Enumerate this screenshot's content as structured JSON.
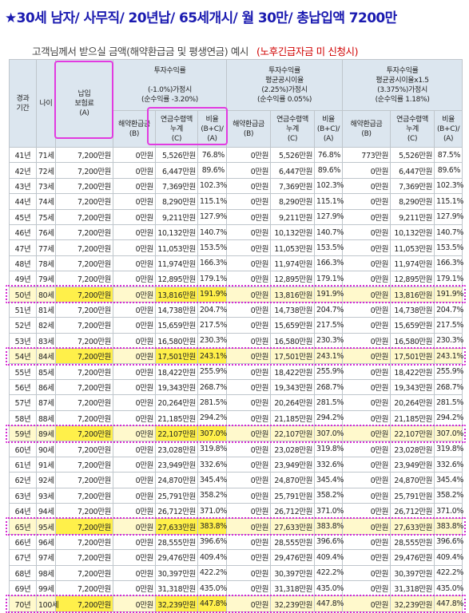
{
  "title": "★30세 남자/ 사무직/ 20년납/ 65세개시/ 월 30만/ 총납입액 7200만",
  "subtitle": "고객님께서 받으실 금액(해약환급금 및 평생연금) 예시",
  "subtitle_note": "(노후긴급자금 미 신청시)",
  "headers": {
    "period": "경과\n기간",
    "age": "나이",
    "premium": "납입\n보험료\n(A)",
    "group1": "투자수익률\n\n(-1.0%)가정시\n(순수익률 -3.20%)",
    "group2": "투자수익률\n평균공시이율\n(2.25%)가정시\n(순수익률 0.05%)",
    "group3": "투자수익률\n평균공시이율x1.5\n(3.375%)가정시\n(순수익률 1.18%)",
    "refund": "해약환급금\n(B)",
    "annuity": "연금수령액\n누계\n(C)",
    "ratio": "비율\n(B+C)/\n(A)"
  },
  "rows": [
    {
      "period": "41년",
      "age": "71세",
      "premium": "7,200만원",
      "g1": {
        "refund": "0만원",
        "annuity": "5,526만원",
        "ratio": "76.8%"
      },
      "g2": {
        "refund": "0만원",
        "annuity": "5,526만원",
        "ratio": "76.8%"
      },
      "g3": {
        "refund": "773만원",
        "annuity": "5,526만원",
        "ratio": "87.5%"
      },
      "hl": false
    },
    {
      "period": "42년",
      "age": "72세",
      "premium": "7,200만원",
      "g1": {
        "refund": "0만원",
        "annuity": "6,447만원",
        "ratio": "89.6%"
      },
      "g2": {
        "refund": "0만원",
        "annuity": "6,447만원",
        "ratio": "89.6%"
      },
      "g3": {
        "refund": "0만원",
        "annuity": "6,447만원",
        "ratio": "89.6%"
      },
      "hl": false
    },
    {
      "period": "43년",
      "age": "73세",
      "premium": "7,200만원",
      "g1": {
        "refund": "0만원",
        "annuity": "7,369만원",
        "ratio": "102.3%"
      },
      "g2": {
        "refund": "0만원",
        "annuity": "7,369만원",
        "ratio": "102.3%"
      },
      "g3": {
        "refund": "0만원",
        "annuity": "7,369만원",
        "ratio": "102.3%"
      },
      "hl": false
    },
    {
      "period": "44년",
      "age": "74세",
      "premium": "7,200만원",
      "g1": {
        "refund": "0만원",
        "annuity": "8,290만원",
        "ratio": "115.1%"
      },
      "g2": {
        "refund": "0만원",
        "annuity": "8,290만원",
        "ratio": "115.1%"
      },
      "g3": {
        "refund": "0만원",
        "annuity": "8,290만원",
        "ratio": "115.1%"
      },
      "hl": false
    },
    {
      "period": "45년",
      "age": "75세",
      "premium": "7,200만원",
      "g1": {
        "refund": "0만원",
        "annuity": "9,211만원",
        "ratio": "127.9%"
      },
      "g2": {
        "refund": "0만원",
        "annuity": "9,211만원",
        "ratio": "127.9%"
      },
      "g3": {
        "refund": "0만원",
        "annuity": "9,211만원",
        "ratio": "127.9%"
      },
      "hl": false
    },
    {
      "period": "46년",
      "age": "76세",
      "premium": "7,200만원",
      "g1": {
        "refund": "0만원",
        "annuity": "10,132만원",
        "ratio": "140.7%"
      },
      "g2": {
        "refund": "0만원",
        "annuity": "10,132만원",
        "ratio": "140.7%"
      },
      "g3": {
        "refund": "0만원",
        "annuity": "10,132만원",
        "ratio": "140.7%"
      },
      "hl": false
    },
    {
      "period": "47년",
      "age": "77세",
      "premium": "7,200만원",
      "g1": {
        "refund": "0만원",
        "annuity": "11,053만원",
        "ratio": "153.5%"
      },
      "g2": {
        "refund": "0만원",
        "annuity": "11,053만원",
        "ratio": "153.5%"
      },
      "g3": {
        "refund": "0만원",
        "annuity": "11,053만원",
        "ratio": "153.5%"
      },
      "hl": false
    },
    {
      "period": "48년",
      "age": "78세",
      "premium": "7,200만원",
      "g1": {
        "refund": "0만원",
        "annuity": "11,974만원",
        "ratio": "166.3%"
      },
      "g2": {
        "refund": "0만원",
        "annuity": "11,974만원",
        "ratio": "166.3%"
      },
      "g3": {
        "refund": "0만원",
        "annuity": "11,974만원",
        "ratio": "166.3%"
      },
      "hl": false
    },
    {
      "period": "49년",
      "age": "79세",
      "premium": "7,200만원",
      "g1": {
        "refund": "0만원",
        "annuity": "12,895만원",
        "ratio": "179.1%"
      },
      "g2": {
        "refund": "0만원",
        "annuity": "12,895만원",
        "ratio": "179.1%"
      },
      "g3": {
        "refund": "0만원",
        "annuity": "12,895만원",
        "ratio": "179.1%"
      },
      "hl": false
    },
    {
      "period": "50년",
      "age": "80세",
      "premium": "7,200만원",
      "g1": {
        "refund": "0만원",
        "annuity": "13,816만원",
        "ratio": "191.9%"
      },
      "g2": {
        "refund": "0만원",
        "annuity": "13,816만원",
        "ratio": "191.9%"
      },
      "g3": {
        "refund": "0만원",
        "annuity": "13,816만원",
        "ratio": "191.9%"
      },
      "hl": true
    },
    {
      "period": "51년",
      "age": "81세",
      "premium": "7,200만원",
      "g1": {
        "refund": "0만원",
        "annuity": "14,738만원",
        "ratio": "204.7%"
      },
      "g2": {
        "refund": "0만원",
        "annuity": "14,738만원",
        "ratio": "204.7%"
      },
      "g3": {
        "refund": "0만원",
        "annuity": "14,738만원",
        "ratio": "204.7%"
      },
      "hl": false
    },
    {
      "period": "52년",
      "age": "82세",
      "premium": "7,200만원",
      "g1": {
        "refund": "0만원",
        "annuity": "15,659만원",
        "ratio": "217.5%"
      },
      "g2": {
        "refund": "0만원",
        "annuity": "15,659만원",
        "ratio": "217.5%"
      },
      "g3": {
        "refund": "0만원",
        "annuity": "15,659만원",
        "ratio": "217.5%"
      },
      "hl": false
    },
    {
      "period": "53년",
      "age": "83세",
      "premium": "7,200만원",
      "g1": {
        "refund": "0만원",
        "annuity": "16,580만원",
        "ratio": "230.3%"
      },
      "g2": {
        "refund": "0만원",
        "annuity": "16,580만원",
        "ratio": "230.3%"
      },
      "g3": {
        "refund": "0만원",
        "annuity": "16,580만원",
        "ratio": "230.3%"
      },
      "hl": false
    },
    {
      "period": "54년",
      "age": "84세",
      "premium": "7,200만원",
      "g1": {
        "refund": "0만원",
        "annuity": "17,501만원",
        "ratio": "243.1%"
      },
      "g2": {
        "refund": "0만원",
        "annuity": "17,501만원",
        "ratio": "243.1%"
      },
      "g3": {
        "refund": "0만원",
        "annuity": "17,501만원",
        "ratio": "243.1%"
      },
      "hl": true
    },
    {
      "period": "55년",
      "age": "85세",
      "premium": "7,200만원",
      "g1": {
        "refund": "0만원",
        "annuity": "18,422만원",
        "ratio": "255.9%"
      },
      "g2": {
        "refund": "0만원",
        "annuity": "18,422만원",
        "ratio": "255.9%"
      },
      "g3": {
        "refund": "0만원",
        "annuity": "18,422만원",
        "ratio": "255.9%"
      },
      "hl": false
    },
    {
      "period": "56년",
      "age": "86세",
      "premium": "7,200만원",
      "g1": {
        "refund": "0만원",
        "annuity": "19,343만원",
        "ratio": "268.7%"
      },
      "g2": {
        "refund": "0만원",
        "annuity": "19,343만원",
        "ratio": "268.7%"
      },
      "g3": {
        "refund": "0만원",
        "annuity": "19,343만원",
        "ratio": "268.7%"
      },
      "hl": false
    },
    {
      "period": "57년",
      "age": "87세",
      "premium": "7,200만원",
      "g1": {
        "refund": "0만원",
        "annuity": "20,264만원",
        "ratio": "281.5%"
      },
      "g2": {
        "refund": "0만원",
        "annuity": "20,264만원",
        "ratio": "281.5%"
      },
      "g3": {
        "refund": "0만원",
        "annuity": "20,264만원",
        "ratio": "281.5%"
      },
      "hl": false
    },
    {
      "period": "58년",
      "age": "88세",
      "premium": "7,200만원",
      "g1": {
        "refund": "0만원",
        "annuity": "21,185만원",
        "ratio": "294.2%"
      },
      "g2": {
        "refund": "0만원",
        "annuity": "21,185만원",
        "ratio": "294.2%"
      },
      "g3": {
        "refund": "0만원",
        "annuity": "21,185만원",
        "ratio": "294.2%"
      },
      "hl": false
    },
    {
      "period": "59년",
      "age": "89세",
      "premium": "7,200만원",
      "g1": {
        "refund": "0만원",
        "annuity": "22,107만원",
        "ratio": "307.0%"
      },
      "g2": {
        "refund": "0만원",
        "annuity": "22,107만원",
        "ratio": "307.0%"
      },
      "g3": {
        "refund": "0만원",
        "annuity": "22,107만원",
        "ratio": "307.0%"
      },
      "hl": true
    },
    {
      "period": "60년",
      "age": "90세",
      "premium": "7,200만원",
      "g1": {
        "refund": "0만원",
        "annuity": "23,028만원",
        "ratio": "319.8%"
      },
      "g2": {
        "refund": "0만원",
        "annuity": "23,028만원",
        "ratio": "319.8%"
      },
      "g3": {
        "refund": "0만원",
        "annuity": "23,028만원",
        "ratio": "319.8%"
      },
      "hl": false
    },
    {
      "period": "61년",
      "age": "91세",
      "premium": "7,200만원",
      "g1": {
        "refund": "0만원",
        "annuity": "23,949만원",
        "ratio": "332.6%"
      },
      "g2": {
        "refund": "0만원",
        "annuity": "23,949만원",
        "ratio": "332.6%"
      },
      "g3": {
        "refund": "0만원",
        "annuity": "23,949만원",
        "ratio": "332.6%"
      },
      "hl": false
    },
    {
      "period": "62년",
      "age": "92세",
      "premium": "7,200만원",
      "g1": {
        "refund": "0만원",
        "annuity": "24,870만원",
        "ratio": "345.4%"
      },
      "g2": {
        "refund": "0만원",
        "annuity": "24,870만원",
        "ratio": "345.4%"
      },
      "g3": {
        "refund": "0만원",
        "annuity": "24,870만원",
        "ratio": "345.4%"
      },
      "hl": false
    },
    {
      "period": "63년",
      "age": "93세",
      "premium": "7,200만원",
      "g1": {
        "refund": "0만원",
        "annuity": "25,791만원",
        "ratio": "358.2%"
      },
      "g2": {
        "refund": "0만원",
        "annuity": "25,791만원",
        "ratio": "358.2%"
      },
      "g3": {
        "refund": "0만원",
        "annuity": "25,791만원",
        "ratio": "358.2%"
      },
      "hl": false
    },
    {
      "period": "64년",
      "age": "94세",
      "premium": "7,200만원",
      "g1": {
        "refund": "0만원",
        "annuity": "26,712만원",
        "ratio": "371.0%"
      },
      "g2": {
        "refund": "0만원",
        "annuity": "26,712만원",
        "ratio": "371.0%"
      },
      "g3": {
        "refund": "0만원",
        "annuity": "26,712만원",
        "ratio": "371.0%"
      },
      "hl": false
    },
    {
      "period": "65년",
      "age": "95세",
      "premium": "7,200만원",
      "g1": {
        "refund": "0만원",
        "annuity": "27,633만원",
        "ratio": "383.8%"
      },
      "g2": {
        "refund": "0만원",
        "annuity": "27,633만원",
        "ratio": "383.8%"
      },
      "g3": {
        "refund": "0만원",
        "annuity": "27,633만원",
        "ratio": "383.8%"
      },
      "hl": true
    },
    {
      "period": "66년",
      "age": "96세",
      "premium": "7,200만원",
      "g1": {
        "refund": "0만원",
        "annuity": "28,555만원",
        "ratio": "396.6%"
      },
      "g2": {
        "refund": "0만원",
        "annuity": "28,555만원",
        "ratio": "396.6%"
      },
      "g3": {
        "refund": "0만원",
        "annuity": "28,555만원",
        "ratio": "396.6%"
      },
      "hl": false
    },
    {
      "period": "67년",
      "age": "97세",
      "premium": "7,200만원",
      "g1": {
        "refund": "0만원",
        "annuity": "29,476만원",
        "ratio": "409.4%"
      },
      "g2": {
        "refund": "0만원",
        "annuity": "29,476만원",
        "ratio": "409.4%"
      },
      "g3": {
        "refund": "0만원",
        "annuity": "29,476만원",
        "ratio": "409.4%"
      },
      "hl": false
    },
    {
      "period": "68년",
      "age": "98세",
      "premium": "7,200만원",
      "g1": {
        "refund": "0만원",
        "annuity": "30,397만원",
        "ratio": "422.2%"
      },
      "g2": {
        "refund": "0만원",
        "annuity": "30,397만원",
        "ratio": "422.2%"
      },
      "g3": {
        "refund": "0만원",
        "annuity": "30,397만원",
        "ratio": "422.2%"
      },
      "hl": false
    },
    {
      "period": "69년",
      "age": "99세",
      "premium": "7,200만원",
      "g1": {
        "refund": "0만원",
        "annuity": "31,318만원",
        "ratio": "435.0%"
      },
      "g2": {
        "refund": "0만원",
        "annuity": "31,318만원",
        "ratio": "435.0%"
      },
      "g3": {
        "refund": "0만원",
        "annuity": "31,318만원",
        "ratio": "435.0%"
      },
      "hl": false
    },
    {
      "period": "70년",
      "age": "100세",
      "premium": "7,200만원",
      "g1": {
        "refund": "0만원",
        "annuity": "32,239만원",
        "ratio": "447.8%"
      },
      "g2": {
        "refund": "0만원",
        "annuity": "32,239만원",
        "ratio": "447.8%"
      },
      "g3": {
        "refund": "0만원",
        "annuity": "32,239만원",
        "ratio": "447.8%"
      },
      "hl": true
    }
  ]
}
